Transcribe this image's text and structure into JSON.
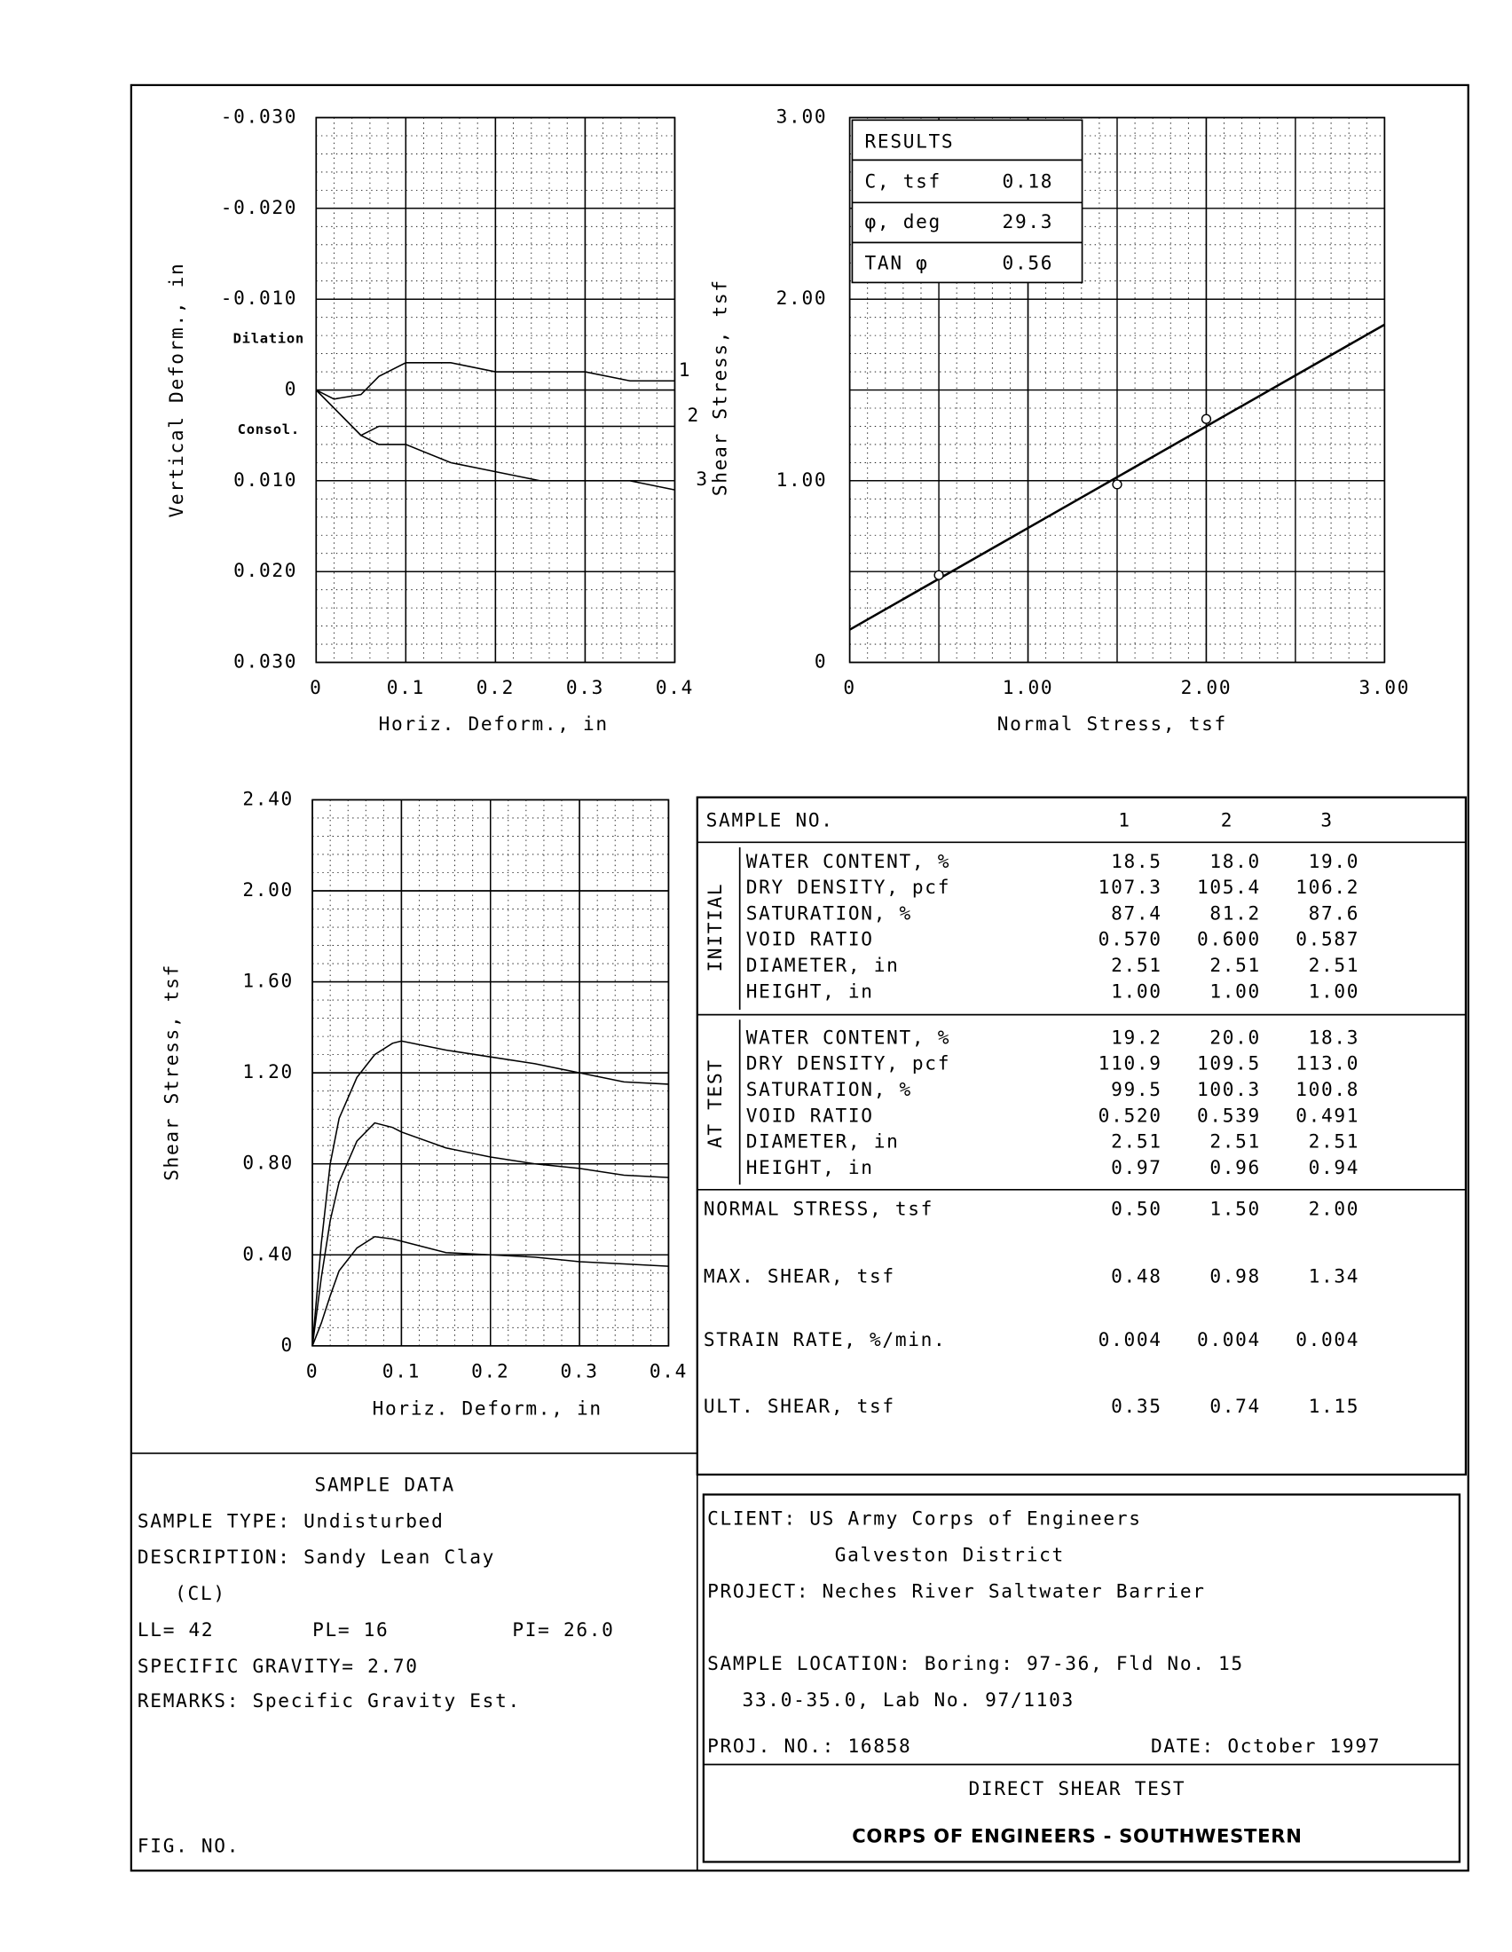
{
  "chart_data": [
    {
      "type": "line",
      "x_label": "Horiz. Deform., in",
      "y_label": "Vertical Deform., in",
      "annotations": [
        "Dilation",
        "Consol."
      ],
      "x": [
        0,
        0.02,
        0.05,
        0.07,
        0.1,
        0.15,
        0.2,
        0.25,
        0.3,
        0.35,
        0.4
      ],
      "series": [
        {
          "name": "1",
          "color": "#000000",
          "values": [
            0,
            0.001,
            0.0005,
            -0.0015,
            -0.003,
            -0.003,
            -0.002,
            -0.002,
            -0.002,
            -0.001,
            -0.001
          ]
        },
        {
          "name": "2",
          "color": "#000000",
          "values": [
            0,
            0.002,
            0.005,
            0.004,
            0.004,
            0.004,
            0.004,
            0.004,
            0.004,
            0.004,
            0.004
          ]
        },
        {
          "name": "3",
          "color": "#000000",
          "values": [
            0,
            0.002,
            0.005,
            0.006,
            0.006,
            0.008,
            0.009,
            0.01,
            0.01,
            0.01,
            0.011
          ]
        }
      ],
      "xlim": [
        0,
        0.4
      ],
      "ylim": [
        0.03,
        -0.03
      ],
      "xticks": [
        0,
        0.1,
        0.2,
        0.3,
        0.4
      ],
      "yticks": [
        {
          "value": -0.03,
          "label": "-0.030"
        },
        {
          "value": -0.02,
          "label": "-0.020"
        },
        {
          "value": -0.01,
          "label": "-0.010"
        },
        0,
        {
          "value": 0.01,
          "label": "0.010"
        },
        {
          "value": 0.02,
          "label": "0.020"
        },
        {
          "value": 0.03,
          "label": "0.030"
        }
      ],
      "grid": true
    },
    {
      "type": "scatter",
      "x_label": "Normal Stress,  tsf",
      "y_label": "Shear Stress, tsf",
      "x": [
        0.5,
        1.5,
        2.0
      ],
      "values": [
        0.48,
        0.98,
        1.34
      ],
      "color": "#000000",
      "fit_line": true,
      "xlim": [
        0,
        3
      ],
      "ylim": [
        0,
        3
      ],
      "xticks": [
        0,
        {
          "value": 1,
          "label": "1.00"
        },
        {
          "value": 2,
          "label": "2.00"
        },
        {
          "value": 3,
          "label": "3.00"
        }
      ],
      "yticks": [
        0,
        {
          "value": 1,
          "label": "1.00"
        },
        {
          "value": 2,
          "label": "2.00"
        },
        {
          "value": 3,
          "label": "3.00"
        }
      ],
      "grid": true
    },
    {
      "type": "line",
      "x_label": "Horiz. Deform.,  in",
      "y_label": "Shear Stress, tsf",
      "x": [
        0,
        0.01,
        0.02,
        0.03,
        0.05,
        0.07,
        0.09,
        0.1,
        0.15,
        0.2,
        0.25,
        0.3,
        0.35,
        0.4
      ],
      "series": [
        {
          "color": "#000000",
          "values": [
            0,
            0.1,
            0.22,
            0.33,
            0.43,
            0.48,
            0.47,
            0.46,
            0.41,
            0.4,
            0.39,
            0.37,
            0.36,
            0.35
          ]
        },
        {
          "color": "#000000",
          "values": [
            0,
            0.3,
            0.55,
            0.72,
            0.9,
            0.98,
            0.96,
            0.94,
            0.87,
            0.83,
            0.8,
            0.78,
            0.75,
            0.74
          ]
        },
        {
          "color": "#000000",
          "values": [
            0,
            0.45,
            0.8,
            1.0,
            1.18,
            1.28,
            1.33,
            1.34,
            1.3,
            1.27,
            1.24,
            1.2,
            1.16,
            1.15
          ]
        }
      ],
      "xlim": [
        0,
        0.4
      ],
      "ylim": [
        0,
        2.4
      ],
      "xticks": [
        0,
        0.1,
        0.2,
        0.3,
        0.4
      ],
      "yticks": [
        0,
        {
          "value": 0.4,
          "label": "0.40"
        },
        {
          "value": 0.8,
          "label": "0.80"
        },
        {
          "value": 1.2,
          "label": "1.20"
        },
        {
          "value": 1.6,
          "label": "1.60"
        },
        {
          "value": 2.0,
          "label": "2.00"
        },
        {
          "value": 2.4,
          "label": "2.40"
        }
      ],
      "grid": true
    }
  ],
  "results": {
    "title": "RESULTS",
    "rows": [
      {
        "label": "C, tsf",
        "value": 0.18
      },
      {
        "label": "φ, deg",
        "value": 29.3
      },
      {
        "label": "TAN φ",
        "value": 0.56
      }
    ]
  },
  "sample_table": {
    "header": [
      "SAMPLE NO.",
      "1",
      "2",
      "3"
    ],
    "groups": [
      {
        "name": "INITIAL",
        "rows": [
          [
            "WATER CONTENT, %",
            "18.5",
            "18.0",
            "19.0"
          ],
          [
            "DRY DENSITY, pcf",
            "107.3",
            "105.4",
            "106.2"
          ],
          [
            "SATURATION, %",
            "87.4",
            "81.2",
            "87.6"
          ],
          [
            "VOID RATIO",
            "0.570",
            "0.600",
            "0.587"
          ],
          [
            "DIAMETER, in",
            "2.51",
            "2.51",
            "2.51"
          ],
          [
            "HEIGHT, in",
            "1.00",
            "1.00",
            "1.00"
          ]
        ]
      },
      {
        "name": "AT TEST",
        "rows": [
          [
            "WATER CONTENT, %",
            "19.2",
            "20.0",
            "18.3"
          ],
          [
            "DRY DENSITY, pcf",
            "110.9",
            "109.5",
            "113.0"
          ],
          [
            "SATURATION, %",
            "99.5",
            "100.3",
            "100.8"
          ],
          [
            "VOID RATIO",
            "0.520",
            "0.539",
            "0.491"
          ],
          [
            "DIAMETER, in",
            "2.51",
            "2.51",
            "2.51"
          ],
          [
            "HEIGHT, in",
            "0.97",
            "0.96",
            "0.94"
          ]
        ]
      }
    ],
    "summary": [
      [
        "NORMAL STRESS, tsf",
        "0.50",
        "1.50",
        "2.00"
      ],
      [
        "MAX. SHEAR, tsf",
        "0.48",
        "0.98",
        "1.34"
      ],
      [
        "STRAIN RATE, %/min.",
        "0.004",
        "0.004",
        "0.004"
      ],
      [
        "ULT. SHEAR, tsf",
        "0.35",
        "0.74",
        "1.15"
      ]
    ]
  },
  "sample_data": {
    "title": "SAMPLE DATA",
    "sample_type": "SAMPLE TYPE: Undisturbed",
    "description": "DESCRIPTION: Sandy Lean Clay",
    "description_cont": "(CL)",
    "ll": "LL= 42",
    "pl": "PL= 16",
    "pi": "PI= 26.0",
    "specific_gravity": "SPECIFIC GRAVITY= 2.70",
    "remarks": "REMARKS: Specific Gravity Est.",
    "fig_no": "FIG. NO."
  },
  "title_block": {
    "client": "CLIENT: US Army Corps of Engineers",
    "client_cont": "Galveston District",
    "project": "PROJECT: Neches River Saltwater Barrier",
    "location": "SAMPLE LOCATION: Boring: 97-36, Fld No. 15",
    "location_cont": "33.0-35.0, Lab No. 97/1103",
    "proj_no": "PROJ. NO.: 16858",
    "date": "DATE: October 1997",
    "test": "DIRECT SHEAR TEST",
    "company": "CORPS OF ENGINEERS - SOUTHWESTERN"
  }
}
